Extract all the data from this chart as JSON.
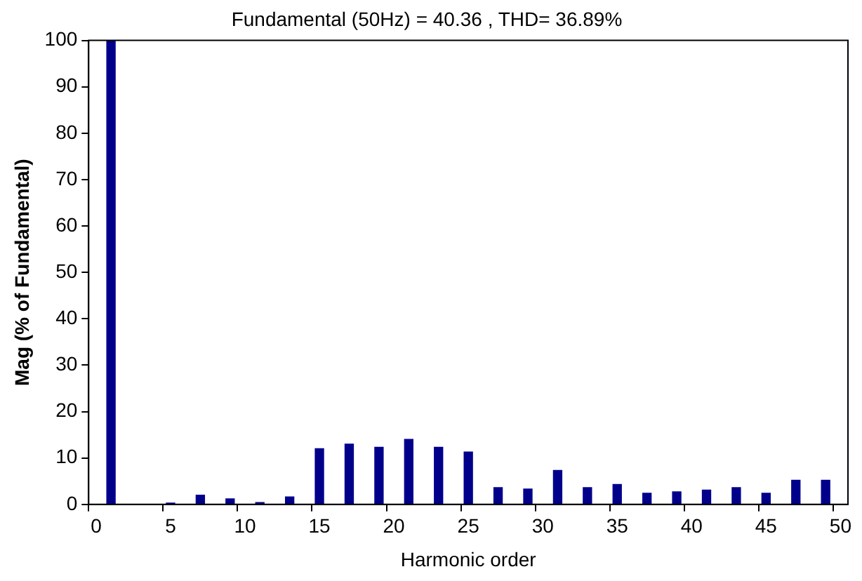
{
  "chart_data": {
    "type": "bar",
    "title": "Fundamental (50Hz) = 40.36 , THD= 36.89%",
    "xlabel": "Harmonic order",
    "ylabel": "Mag (% of Fundamental)",
    "categories": [
      "0",
      null,
      null,
      null,
      null,
      "5",
      null,
      null,
      null,
      null,
      "10",
      null,
      null,
      null,
      null,
      "15",
      null,
      null,
      null,
      null,
      "20",
      null,
      null,
      null,
      null,
      "25",
      null,
      null,
      null,
      null,
      "30",
      null,
      null,
      null,
      null,
      "35",
      null,
      null,
      null,
      null,
      "40",
      null,
      null,
      null,
      null,
      "45",
      null,
      null,
      null,
      null,
      "50"
    ],
    "values": [
      null,
      100,
      null,
      0,
      null,
      0.3,
      null,
      2,
      null,
      1.2,
      null,
      0.4,
      null,
      1.6,
      null,
      12,
      null,
      13,
      null,
      12.3,
      null,
      14,
      null,
      12.3,
      null,
      11.3,
      null,
      3.6,
      null,
      3.3,
      null,
      7.3,
      null,
      3.6,
      null,
      4.3,
      null,
      2.4,
      null,
      2.7,
      null,
      3.1,
      null,
      3.6,
      null,
      2.4,
      null,
      5.2,
      null,
      5.2,
      null
    ],
    "color": "#00008b",
    "ylim": [
      0,
      100
    ],
    "yticks": [
      0,
      10,
      20,
      30,
      40,
      50,
      60,
      70,
      80,
      90,
      100
    ],
    "grid": false,
    "legend": false
  }
}
